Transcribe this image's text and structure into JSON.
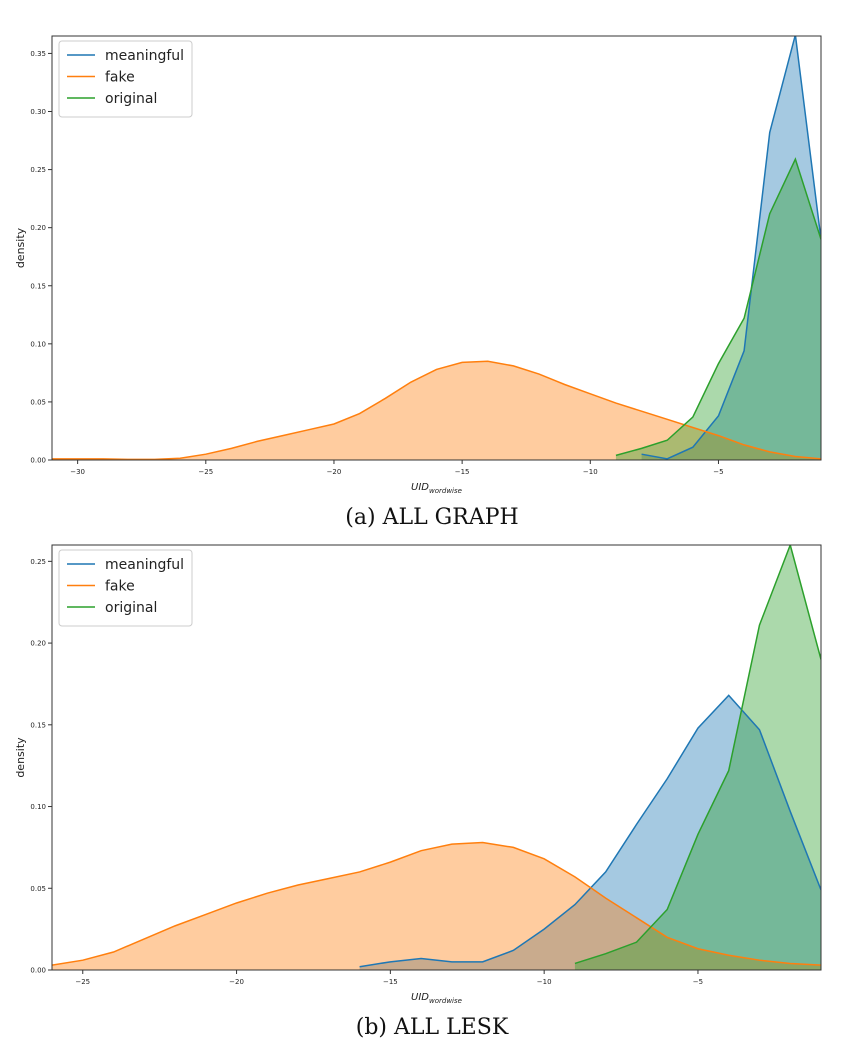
{
  "chart_data": [
    {
      "type": "area",
      "caption": "(a) ALL GRAPH",
      "xlabel_base": "UID",
      "xlabel_sub": "wordwise",
      "ylabel": "density",
      "xlim": [
        -31,
        -1
      ],
      "ylim": [
        0,
        0.365
      ],
      "xticks": [
        -30,
        -25,
        -20,
        -15,
        -10,
        -5
      ],
      "xtick_labels": [
        "−30",
        "−25",
        "−20",
        "−15",
        "−10",
        "−5"
      ],
      "yticks": [
        0.0,
        0.05,
        0.1,
        0.15,
        0.2,
        0.25,
        0.3,
        0.35
      ],
      "ytick_labels": [
        "0.00",
        "0.05",
        "0.10",
        "0.15",
        "0.20",
        "0.25",
        "0.30",
        "0.35"
      ],
      "legend_position": "top-left",
      "series": [
        {
          "name": "meaningful",
          "color": "#1f77b4",
          "x": [
            -8,
            -7,
            -6,
            -5,
            -4,
            -3,
            -2,
            -1
          ],
          "y": [
            0.005,
            0.001,
            0.011,
            0.038,
            0.094,
            0.282,
            0.366,
            0.19
          ]
        },
        {
          "name": "fake",
          "color": "#ff7f0e",
          "x": [
            -31,
            -30,
            -29,
            -28,
            -27,
            -26,
            -25,
            -24,
            -23,
            -22,
            -21,
            -20,
            -19,
            -18,
            -17,
            -16,
            -15,
            -14,
            -13,
            -12,
            -11,
            -10,
            -9,
            -8,
            -7,
            -6,
            -5,
            -4,
            -3,
            -2,
            -1
          ],
          "y": [
            0.001,
            0.001,
            0.001,
            0.0005,
            0.0005,
            0.0015,
            0.005,
            0.01,
            0.016,
            0.021,
            0.026,
            0.031,
            0.04,
            0.053,
            0.067,
            0.078,
            0.084,
            0.085,
            0.081,
            0.074,
            0.065,
            0.057,
            0.049,
            0.042,
            0.035,
            0.028,
            0.021,
            0.013,
            0.007,
            0.003,
            0.001
          ]
        },
        {
          "name": "original",
          "color": "#2ca02c",
          "x": [
            -9,
            -8,
            -7,
            -6,
            -5,
            -4,
            -3,
            -2,
            -1
          ],
          "y": [
            0.004,
            0.01,
            0.017,
            0.037,
            0.083,
            0.122,
            0.212,
            0.259,
            0.19
          ]
        }
      ]
    },
    {
      "type": "area",
      "caption": "(b) ALL LESK",
      "xlabel_base": "UID",
      "xlabel_sub": "wordwise",
      "ylabel": "density",
      "xlim": [
        -26,
        -1
      ],
      "ylim": [
        0,
        0.26
      ],
      "xticks": [
        -25,
        -20,
        -15,
        -10,
        -5
      ],
      "xtick_labels": [
        "−25",
        "−20",
        "−15",
        "−10",
        "−5"
      ],
      "yticks": [
        0.0,
        0.05,
        0.1,
        0.15,
        0.2,
        0.25
      ],
      "ytick_labels": [
        "0.00",
        "0.05",
        "0.10",
        "0.15",
        "0.20",
        "0.25"
      ],
      "legend_position": "top-left",
      "series": [
        {
          "name": "meaningful",
          "color": "#1f77b4",
          "x": [
            -16,
            -15,
            -14,
            -13,
            -12,
            -11,
            -10,
            -9,
            -8,
            -7,
            -6,
            -5,
            -4,
            -3,
            -2,
            -1
          ],
          "y": [
            0.002,
            0.005,
            0.007,
            0.005,
            0.005,
            0.012,
            0.025,
            0.04,
            0.06,
            0.089,
            0.117,
            0.148,
            0.168,
            0.147,
            0.097,
            0.049
          ]
        },
        {
          "name": "fake",
          "color": "#ff7f0e",
          "x": [
            -26,
            -25,
            -24,
            -23,
            -22,
            -21,
            -20,
            -19,
            -18,
            -17,
            -16,
            -15,
            -14,
            -13,
            -12,
            -11,
            -10,
            -9,
            -8,
            -7,
            -6,
            -5,
            -4,
            -3,
            -2,
            -1
          ],
          "y": [
            0.003,
            0.006,
            0.011,
            0.019,
            0.027,
            0.034,
            0.041,
            0.047,
            0.052,
            0.056,
            0.06,
            0.066,
            0.073,
            0.077,
            0.078,
            0.075,
            0.068,
            0.057,
            0.044,
            0.032,
            0.02,
            0.013,
            0.009,
            0.006,
            0.004,
            0.003
          ]
        },
        {
          "name": "original",
          "color": "#2ca02c",
          "x": [
            -9,
            -8,
            -7,
            -6,
            -5,
            -4,
            -3,
            -2,
            -1
          ],
          "y": [
            0.004,
            0.01,
            0.017,
            0.037,
            0.083,
            0.122,
            0.211,
            0.26,
            0.19
          ]
        }
      ]
    }
  ]
}
